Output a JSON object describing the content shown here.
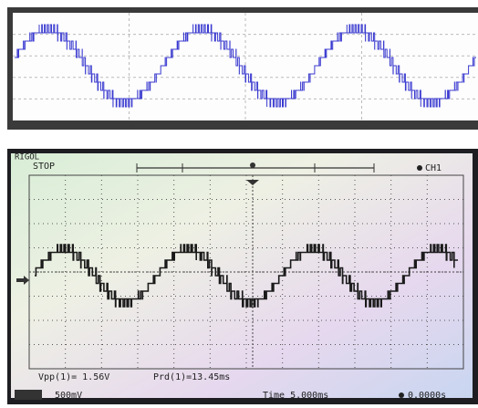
{
  "screen": {
    "header": {
      "brand": "RIGOL",
      "status": "STOP",
      "channel": "CH1"
    },
    "measurements": [
      "Vpp(1)= 1.56V",
      "Prd(1)=13.45ms"
    ],
    "footer": {
      "scale": "500mV",
      "timebase": "Time 5.000ms",
      "offset": "0.0000s"
    }
  }
}
